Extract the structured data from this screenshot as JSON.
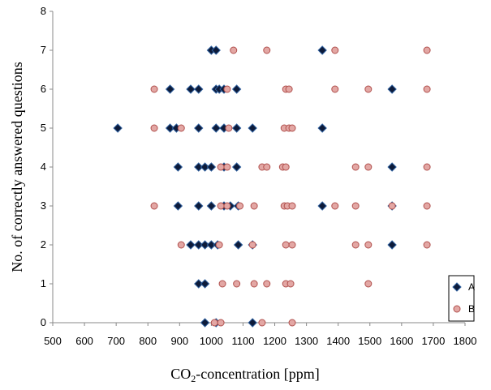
{
  "chart_data": {
    "type": "scatter",
    "title": "",
    "xlabel_main": "CO",
    "xlabel_sub": "2",
    "xlabel_rest": "-concentration [ppm]",
    "ylabel": "No. of correctly answered questions",
    "xlim": [
      500,
      1800
    ],
    "ylim": [
      0,
      8
    ],
    "x_ticks": [
      "500",
      "600",
      "700",
      "800",
      "900",
      "1000",
      "1100",
      "1200",
      "1300",
      "1400",
      "1500",
      "1600",
      "1700",
      "1800"
    ],
    "y_ticks": [
      "0",
      "1",
      "2",
      "3",
      "4",
      "5",
      "6",
      "7",
      "8"
    ],
    "grid": false,
    "legend_position": "bottom-right",
    "series": [
      {
        "name": "A",
        "marker": "diamond",
        "color": "#0d1b3a",
        "edge": "#2e5f9e",
        "points": [
          [
            1000,
            7
          ],
          [
            1015,
            7
          ],
          [
            1350,
            7
          ],
          [
            870,
            6
          ],
          [
            935,
            6
          ],
          [
            960,
            6
          ],
          [
            1015,
            6
          ],
          [
            1025,
            6
          ],
          [
            1040,
            6
          ],
          [
            1080,
            6
          ],
          [
            1570,
            6
          ],
          [
            705,
            5
          ],
          [
            870,
            5
          ],
          [
            890,
            5
          ],
          [
            960,
            5
          ],
          [
            1015,
            5
          ],
          [
            1040,
            5
          ],
          [
            1080,
            5
          ],
          [
            1130,
            5
          ],
          [
            1350,
            5
          ],
          [
            895,
            4
          ],
          [
            960,
            4
          ],
          [
            980,
            4
          ],
          [
            1000,
            4
          ],
          [
            1040,
            4
          ],
          [
            1080,
            4
          ],
          [
            1570,
            4
          ],
          [
            895,
            3
          ],
          [
            960,
            3
          ],
          [
            1000,
            3
          ],
          [
            1040,
            3
          ],
          [
            1060,
            3
          ],
          [
            1085,
            3
          ],
          [
            1350,
            3
          ],
          [
            1570,
            3
          ],
          [
            935,
            2
          ],
          [
            960,
            2
          ],
          [
            980,
            2
          ],
          [
            1000,
            2
          ],
          [
            1020,
            2
          ],
          [
            1085,
            2
          ],
          [
            1130,
            2
          ],
          [
            1570,
            2
          ],
          [
            960,
            1
          ],
          [
            980,
            1
          ],
          [
            980,
            0
          ],
          [
            1015,
            0
          ],
          [
            1130,
            0
          ]
        ]
      },
      {
        "name": "B",
        "marker": "circle",
        "color": "#e3a7a4",
        "edge": "#b0504d",
        "points": [
          [
            1070,
            7
          ],
          [
            1175,
            7
          ],
          [
            1390,
            7
          ],
          [
            1680,
            7
          ],
          [
            820,
            6
          ],
          [
            1050,
            6
          ],
          [
            1235,
            6
          ],
          [
            1245,
            6
          ],
          [
            1390,
            6
          ],
          [
            1495,
            6
          ],
          [
            1680,
            6
          ],
          [
            820,
            5
          ],
          [
            905,
            5
          ],
          [
            1055,
            5
          ],
          [
            1230,
            5
          ],
          [
            1245,
            5
          ],
          [
            1255,
            5
          ],
          [
            1030,
            4
          ],
          [
            1050,
            4
          ],
          [
            1160,
            4
          ],
          [
            1175,
            4
          ],
          [
            1225,
            4
          ],
          [
            1235,
            4
          ],
          [
            1455,
            4
          ],
          [
            1495,
            4
          ],
          [
            1680,
            4
          ],
          [
            820,
            3
          ],
          [
            1030,
            3
          ],
          [
            1050,
            3
          ],
          [
            1090,
            3
          ],
          [
            1135,
            3
          ],
          [
            1230,
            3
          ],
          [
            1240,
            3
          ],
          [
            1255,
            3
          ],
          [
            1390,
            3
          ],
          [
            1455,
            3
          ],
          [
            1570,
            3
          ],
          [
            1680,
            3
          ],
          [
            905,
            2
          ],
          [
            1025,
            2
          ],
          [
            1130,
            2
          ],
          [
            1235,
            2
          ],
          [
            1255,
            2
          ],
          [
            1455,
            2
          ],
          [
            1495,
            2
          ],
          [
            1680,
            2
          ],
          [
            1035,
            1
          ],
          [
            1080,
            1
          ],
          [
            1135,
            1
          ],
          [
            1175,
            1
          ],
          [
            1235,
            1
          ],
          [
            1250,
            1
          ],
          [
            1495,
            1
          ],
          [
            1010,
            0
          ],
          [
            1030,
            0
          ],
          [
            1160,
            0
          ],
          [
            1255,
            0
          ]
        ]
      }
    ]
  }
}
